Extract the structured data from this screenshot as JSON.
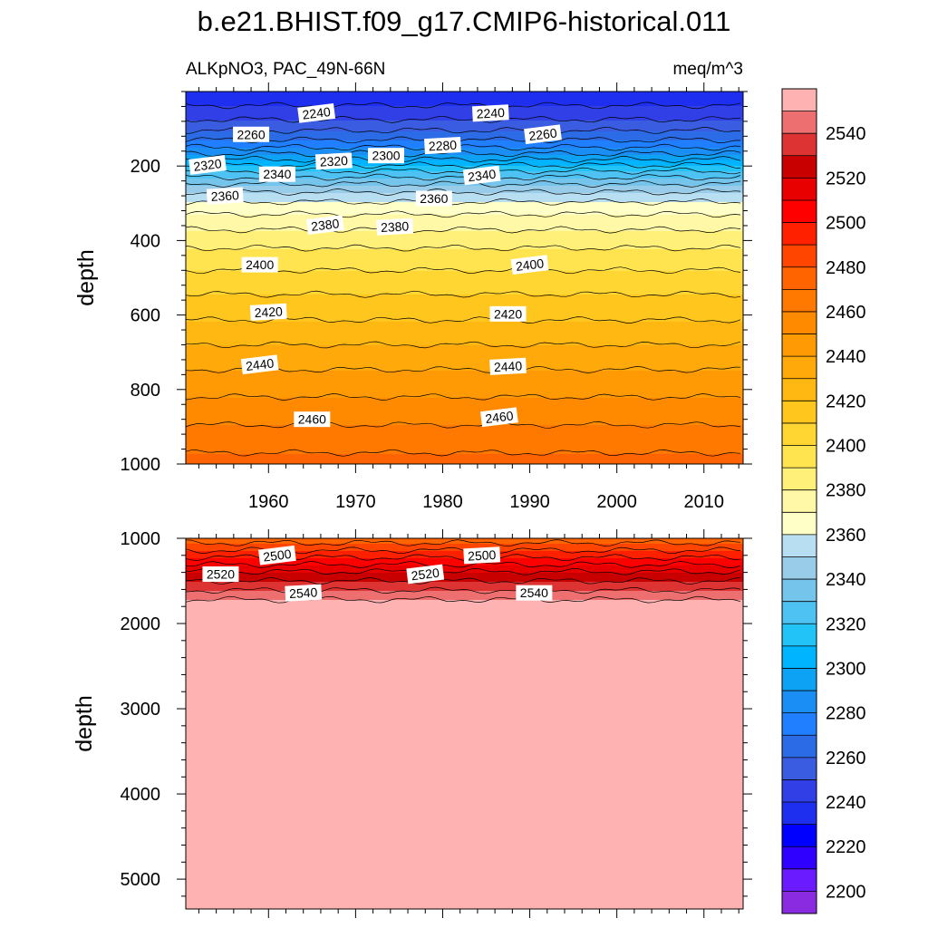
{
  "title": "b.e21.BHIST.f09_g17.CMIP6-historical.011",
  "left_subtitle": "ALKpNO3, PAC_49N-66N",
  "right_subtitle": "meq/m^3",
  "chart_data": [
    {
      "panel": "upper",
      "type": "contour-filled",
      "variable": "ALKpNO3",
      "region": "PAC_49N-66N",
      "units": "meq/m^3",
      "xlabel": "",
      "ylabel": "depth",
      "xlim": [
        1950.5,
        2014.5
      ],
      "ylim": [
        0,
        1000
      ],
      "y_reversed": true,
      "x_ticks": [
        1960,
        1970,
        1980,
        1990,
        2000,
        2010
      ],
      "y_ticks": [
        200,
        400,
        600,
        800,
        1000
      ],
      "depth_profile": {
        "depth": [
          15,
          30,
          45,
          60,
          75,
          90,
          110,
          130,
          150,
          170,
          190,
          210,
          230,
          250,
          270,
          290,
          315,
          340,
          380,
          430,
          480,
          530,
          580,
          640,
          700,
          760,
          820,
          880,
          940,
          1000
        ],
        "alkalinity": [
          2235,
          2238,
          2242,
          2246,
          2250,
          2255,
          2262,
          2270,
          2280,
          2292,
          2305,
          2318,
          2330,
          2341,
          2350,
          2358,
          2366,
          2373,
          2382,
          2392,
          2400,
          2408,
          2415,
          2424,
          2433,
          2442,
          2450,
          2458,
          2466,
          2474
        ]
      },
      "contour_labels": [
        {
          "text": "2240",
          "year": 1965.5,
          "depth": 58
        },
        {
          "text": "2240",
          "year": 1985.5,
          "depth": 58
        },
        {
          "text": "2260",
          "year": 1958,
          "depth": 115
        },
        {
          "text": "2260",
          "year": 1991.5,
          "depth": 115
        },
        {
          "text": "2280",
          "year": 1980,
          "depth": 145
        },
        {
          "text": "2300",
          "year": 1973.5,
          "depth": 172
        },
        {
          "text": "2320",
          "year": 1953,
          "depth": 197
        },
        {
          "text": "2320",
          "year": 1967.5,
          "depth": 187
        },
        {
          "text": "2340",
          "year": 1961,
          "depth": 222
        },
        {
          "text": "2340",
          "year": 1984.5,
          "depth": 225
        },
        {
          "text": "2360",
          "year": 1955,
          "depth": 280
        },
        {
          "text": "2360",
          "year": 1979,
          "depth": 287
        },
        {
          "text": "2380",
          "year": 1966.5,
          "depth": 358
        },
        {
          "text": "2380",
          "year": 1974.5,
          "depth": 363
        },
        {
          "text": "2400",
          "year": 1959,
          "depth": 465
        },
        {
          "text": "2400",
          "year": 1990,
          "depth": 465
        },
        {
          "text": "2420",
          "year": 1960,
          "depth": 592
        },
        {
          "text": "2420",
          "year": 1987.5,
          "depth": 597
        },
        {
          "text": "2440",
          "year": 1959,
          "depth": 733
        },
        {
          "text": "2440",
          "year": 1987.5,
          "depth": 738
        },
        {
          "text": "2460",
          "year": 1965,
          "depth": 880
        },
        {
          "text": "2460",
          "year": 1986.5,
          "depth": 874
        }
      ]
    },
    {
      "panel": "lower",
      "type": "contour-filled",
      "variable": "ALKpNO3",
      "region": "PAC_49N-66N",
      "units": "meq/m^3",
      "xlabel": "",
      "ylabel": "depth",
      "xlim": [
        1950.5,
        2014.5
      ],
      "ylim": [
        1000,
        5350
      ],
      "y_reversed": true,
      "y_ticks": [
        1000,
        2000,
        3000,
        4000,
        5000
      ],
      "depth_profile": {
        "depth": [
          1000,
          1100,
          1200,
          1300,
          1400,
          1500,
          1600,
          1700,
          1800,
          5350
        ],
        "alkalinity": [
          2474,
          2485,
          2497,
          2509,
          2521,
          2530,
          2539,
          2548,
          2558,
          2570
        ]
      },
      "contour_labels": [
        {
          "text": "2500",
          "year": 1961,
          "depth": 1200
        },
        {
          "text": "2500",
          "year": 1984.5,
          "depth": 1200
        },
        {
          "text": "2520",
          "year": 1954.5,
          "depth": 1420
        },
        {
          "text": "2520",
          "year": 1978,
          "depth": 1420
        },
        {
          "text": "2540",
          "year": 1964,
          "depth": 1640
        },
        {
          "text": "2540",
          "year": 1990.5,
          "depth": 1640
        }
      ]
    }
  ],
  "colorbar": {
    "levels": [
      2200,
      2210,
      2220,
      2230,
      2240,
      2250,
      2260,
      2270,
      2280,
      2290,
      2300,
      2310,
      2320,
      2330,
      2340,
      2350,
      2360,
      2370,
      2380,
      2390,
      2400,
      2410,
      2420,
      2430,
      2440,
      2450,
      2460,
      2470,
      2480,
      2490,
      2500,
      2510,
      2520,
      2530,
      2540,
      2550
    ],
    "label_levels": [
      2200,
      2220,
      2240,
      2260,
      2280,
      2300,
      2320,
      2340,
      2360,
      2380,
      2400,
      2420,
      2440,
      2460,
      2480,
      2500,
      2520,
      2540
    ],
    "colors": [
      "#8a2be2",
      "#6a1bff",
      "#2f00ff",
      "#0000ff",
      "#1f2ff0",
      "#3040e6",
      "#3a5ce0",
      "#2b6be6",
      "#1f7fff",
      "#1a8ef5",
      "#0ea2f5",
      "#00b4ff",
      "#22c4f8",
      "#4ec2f2",
      "#74c4ec",
      "#98cce8",
      "#b7def1",
      "#ffffc8",
      "#fff8a6",
      "#fff07a",
      "#ffe450",
      "#ffd632",
      "#ffc61e",
      "#ffb812",
      "#ffa90b",
      "#ff9a05",
      "#ff8a00",
      "#ff7800",
      "#ff6400",
      "#ff4500",
      "#ff2000",
      "#ff0000",
      "#e80000",
      "#c90000",
      "#dd3333",
      "#ee6f6f",
      "#ffb2b2"
    ]
  }
}
